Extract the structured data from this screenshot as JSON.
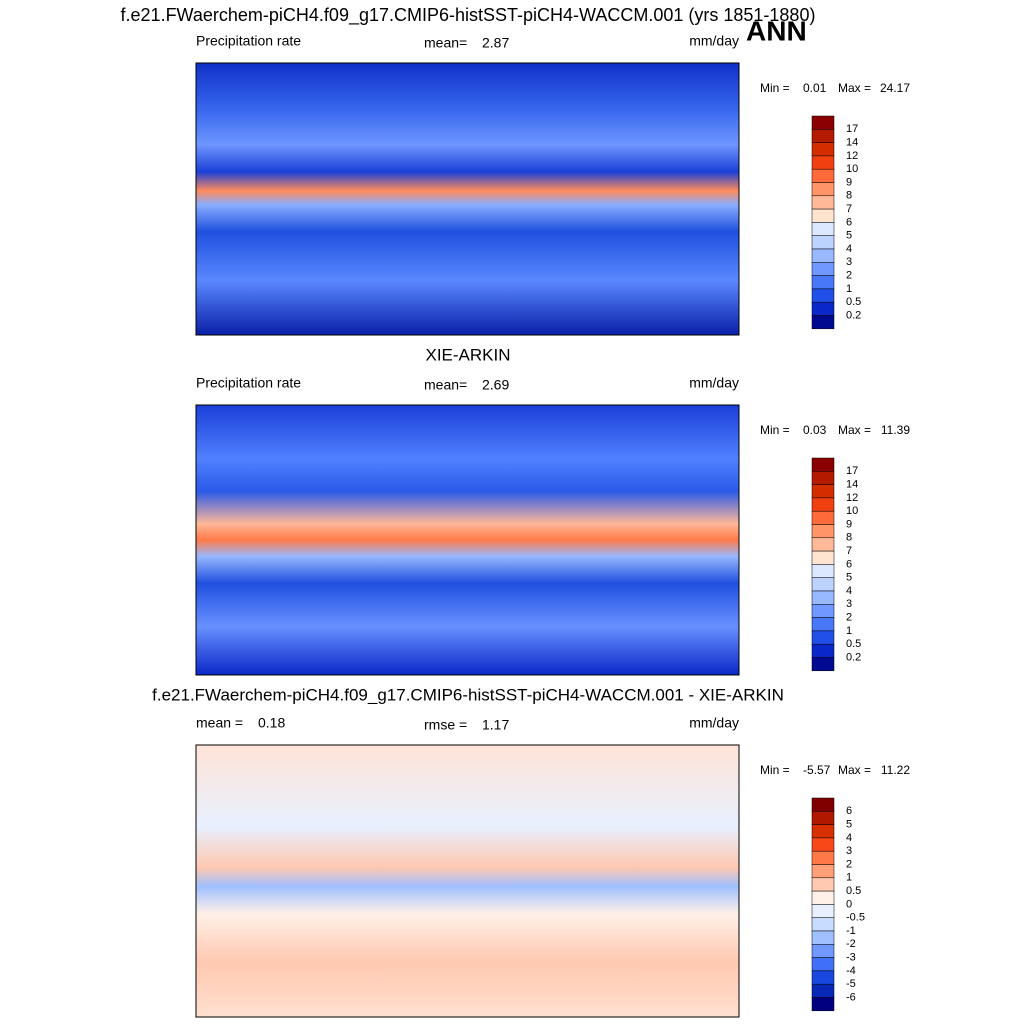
{
  "title": "f.e21.FWaerchem-piCH4.f09_g17.CMIP6-histSST-piCH4-WACCM.001 (yrs 1851-1880)",
  "season": "ANN",
  "panels": [
    {
      "left": {
        "label": "Precipitation rate"
      },
      "center": {
        "label": "mean=",
        "value": 2.87
      },
      "units": "mm/day",
      "min_label": "Min =",
      "min": 0.01,
      "max_label": "Max =",
      "max": 24.17,
      "colorbar": {
        "levels": [
          17,
          14,
          12,
          10,
          9,
          8,
          7,
          6,
          5,
          4,
          3,
          2,
          1,
          0.5,
          0.2
        ],
        "colors": [
          "#8b0000",
          "#b41a00",
          "#d42e00",
          "#f04010",
          "#ff6a3a",
          "#ff9468",
          "#ffb898",
          "#ffe4d0",
          "#dce8ff",
          "#bcd2ff",
          "#98b8ff",
          "#7098ff",
          "#4878f8",
          "#2050e8",
          "#0a28c8",
          "#000a90"
        ]
      }
    },
    {
      "heading": "XIE-ARKIN",
      "left": {
        "label": "Precipitation rate"
      },
      "center": {
        "label": "mean=",
        "value": 2.69
      },
      "units": "mm/day",
      "min_label": "Min =",
      "min": 0.03,
      "max_label": "Max =",
      "max": 11.39,
      "colorbar": {
        "levels": [
          17,
          14,
          12,
          10,
          9,
          8,
          7,
          6,
          5,
          4,
          3,
          2,
          1,
          0.5,
          0.2
        ],
        "colors": [
          "#8b0000",
          "#b41a00",
          "#d42e00",
          "#f04010",
          "#ff6a3a",
          "#ff9468",
          "#ffb898",
          "#ffe4d0",
          "#dce8ff",
          "#bcd2ff",
          "#98b8ff",
          "#7098ff",
          "#4878f8",
          "#2050e8",
          "#0a28c8",
          "#000a90"
        ]
      }
    },
    {
      "heading": "f.e21.FWaerchem-piCH4.f09_g17.CMIP6-histSST-piCH4-WACCM.001 - XIE-ARKIN",
      "left": {
        "label": "mean =",
        "value": 0.18
      },
      "center": {
        "label": "rmse =",
        "value": 1.17
      },
      "units": "mm/day",
      "min_label": "Min =",
      "min": -5.57,
      "max_label": "Max =",
      "max": 11.22,
      "colorbar": {
        "levels": [
          6,
          5,
          4,
          3,
          2,
          1,
          0.5,
          0,
          -0.5,
          -1,
          -2,
          -3,
          -4,
          -5,
          -6
        ],
        "colors": [
          "#800000",
          "#b01800",
          "#d83000",
          "#f84818",
          "#ff7848",
          "#ffa078",
          "#ffc8b0",
          "#fff0e8",
          "#e8f0ff",
          "#c8dcff",
          "#a0c0ff",
          "#7098ff",
          "#4070f8",
          "#1848e0",
          "#0828b8",
          "#000080"
        ]
      }
    }
  ]
}
